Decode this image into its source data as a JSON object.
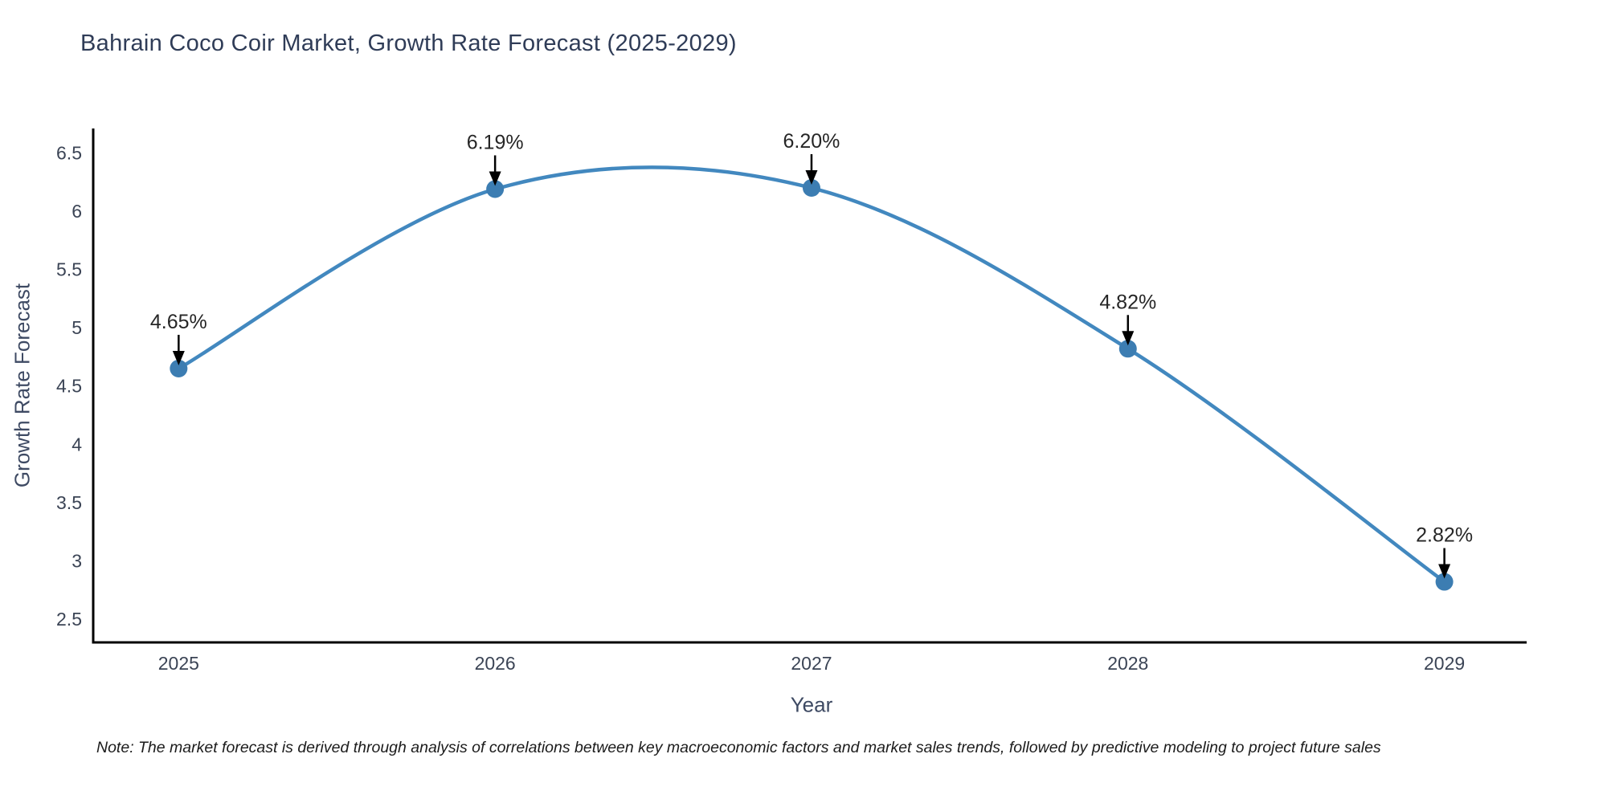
{
  "page": {
    "background": "#ffffff"
  },
  "chart_data": {
    "type": "line",
    "title": "Bahrain Coco Coir Market, Growth Rate Forecast (2025-2029)",
    "xlabel": "Year",
    "ylabel": "Growth Rate Forecast",
    "x": [
      2025,
      2026,
      2027,
      2028,
      2029
    ],
    "values": [
      4.65,
      6.19,
      6.2,
      4.82,
      2.82
    ],
    "point_labels": [
      "4.65%",
      "6.19%",
      "6.20%",
      "4.82%",
      "2.82%"
    ],
    "xtick_labels": [
      "2025",
      "2026",
      "2027",
      "2028",
      "2029"
    ],
    "yticks": [
      2.5,
      3,
      3.5,
      4,
      4.5,
      5,
      5.5,
      6,
      6.5
    ],
    "xlim": [
      2024.73,
      2029.26
    ],
    "ylim": [
      2.3,
      6.71
    ],
    "grid": false,
    "legend": null,
    "line_color": "#4288bf",
    "marker_color": "#3c7db2",
    "annotation_text_color": "#262626",
    "arrow_color": "#000000",
    "axis_color": "#000000",
    "tick_color": "#3b4455",
    "title_color": "#2f3c57",
    "axis_label_color": "#3e4a63"
  },
  "note": {
    "text": "Note: The market forecast is derived through analysis of correlations between key macroeconomic factors and market sales trends, followed by predictive modeling to project future sales"
  }
}
